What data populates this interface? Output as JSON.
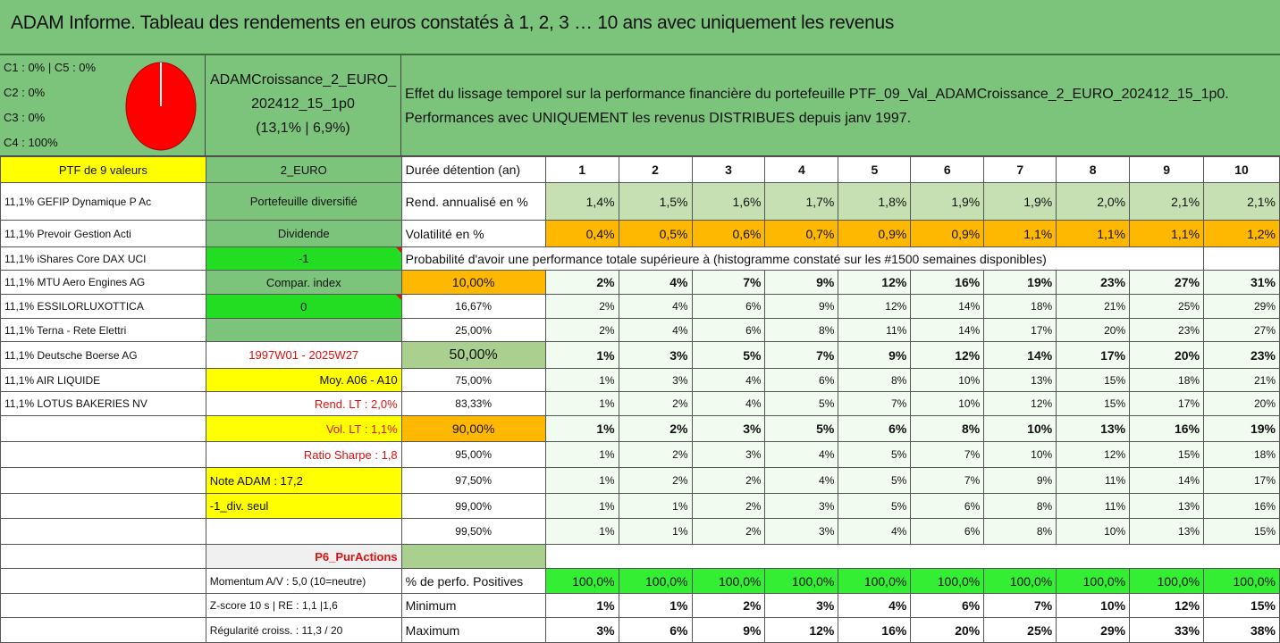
{
  "title": "ADAM Informe. Tableau des rendements en euros constatés à 1, 2, 3 … 10 ans avec uniquement les revenus",
  "pie": {
    "lines": [
      "C1 : 0% | C5 : 0%",
      "C2 : 0%",
      "C3 : 0%",
      "C4 : 100%"
    ],
    "color": "#ff0000"
  },
  "portfolio": {
    "name_line1": "ADAMCroissance_2_EURO_",
    "name_line2": "202412_15_1p0",
    "stats": "(13,1% | 6,9%)"
  },
  "description": {
    "line1": "Effet du lissage temporel sur la performance financière du portefeuille PTF_09_Val_ADAMCroissance_2_EURO_202412_15_1p0.",
    "line2": "Performances avec UNIQUEMENT les revenus DISTRIBUES depuis janv 1997."
  },
  "header_row": {
    "ptf_label": "PTF de 9 valeurs",
    "currency": "2_EURO",
    "duration_label": "Durée détention (an)",
    "years": [
      "1",
      "2",
      "3",
      "4",
      "5",
      "6",
      "7",
      "8",
      "9",
      "10"
    ]
  },
  "holdings": [
    "11,1% GEFIP Dynamique P Ac",
    "11,1% Prevoir Gestion Acti",
    "11,1% iShares Core DAX UCI",
    "11,1% MTU Aero Engines AG",
    "11,1% ESSILORLUXOTTICA",
    "11,1% Terna - Rete Elettri",
    "11,1% Deutsche Boerse AG",
    "11,1% AIR LIQUIDE",
    "11,1% LOTUS BAKERIES NV"
  ],
  "side_info": {
    "type": "Portefeuille diversifié",
    "dividend": "Dividende",
    "dividend_value": "-1",
    "compar_index": "Compar. index",
    "compar_value": "0",
    "period": "1997W01 - 2025W27",
    "moy": "Moy. A06 - A10",
    "rend_lt": "Rend. LT : 2,0%",
    "vol_lt": "Vol. LT : 1,1%",
    "sharpe": "Ratio Sharpe : 1,8",
    "note": "Note ADAM : 17,2",
    "div_seul": "-1_div. seul",
    "profile": "P6_PurActions",
    "momentum": "Momentum A/V : 5,0 (10=neutre)",
    "zscore": "Z-score 10 s | RE : 1,1 |1,6",
    "regularite": "Régularité croiss. : 11,3 / 20"
  },
  "rend": {
    "label": "Rend. annualisé en %",
    "values": [
      "1,4%",
      "1,5%",
      "1,6%",
      "1,7%",
      "1,8%",
      "1,9%",
      "1,9%",
      "2,0%",
      "2,1%",
      "2,1%"
    ]
  },
  "vol": {
    "label": "Volatilité en %",
    "values": [
      "0,4%",
      "0,5%",
      "0,6%",
      "0,7%",
      "0,9%",
      "0,9%",
      "1,1%",
      "1,1%",
      "1,1%",
      "1,2%"
    ]
  },
  "prob_title": "Probabilité d'avoir une performance totale supérieure à (histogramme constaté sur les #1500 semaines disponibles)",
  "prob_rows": [
    {
      "p": "10,00%",
      "values": [
        "2%",
        "4%",
        "7%",
        "9%",
        "12%",
        "16%",
        "19%",
        "23%",
        "27%",
        "31%"
      ]
    },
    {
      "p": "16,67%",
      "values": [
        "2%",
        "4%",
        "6%",
        "9%",
        "12%",
        "14%",
        "18%",
        "21%",
        "25%",
        "29%"
      ]
    },
    {
      "p": "25,00%",
      "values": [
        "2%",
        "4%",
        "6%",
        "8%",
        "11%",
        "14%",
        "17%",
        "20%",
        "23%",
        "27%"
      ]
    },
    {
      "p": "50,00%",
      "values": [
        "1%",
        "3%",
        "5%",
        "7%",
        "9%",
        "12%",
        "14%",
        "17%",
        "20%",
        "23%"
      ]
    },
    {
      "p": "75,00%",
      "values": [
        "1%",
        "3%",
        "4%",
        "6%",
        "8%",
        "10%",
        "13%",
        "15%",
        "18%",
        "21%"
      ]
    },
    {
      "p": "83,33%",
      "values": [
        "1%",
        "2%",
        "4%",
        "5%",
        "7%",
        "10%",
        "12%",
        "15%",
        "17%",
        "20%"
      ]
    },
    {
      "p": "90,00%",
      "values": [
        "1%",
        "2%",
        "3%",
        "5%",
        "6%",
        "8%",
        "10%",
        "13%",
        "16%",
        "19%"
      ]
    },
    {
      "p": "95,00%",
      "values": [
        "1%",
        "2%",
        "3%",
        "4%",
        "5%",
        "7%",
        "10%",
        "12%",
        "15%",
        "18%"
      ]
    },
    {
      "p": "97,50%",
      "values": [
        "1%",
        "2%",
        "2%",
        "4%",
        "5%",
        "7%",
        "9%",
        "11%",
        "14%",
        "17%"
      ]
    },
    {
      "p": "99,00%",
      "values": [
        "1%",
        "1%",
        "2%",
        "3%",
        "5%",
        "6%",
        "8%",
        "11%",
        "13%",
        "16%"
      ]
    },
    {
      "p": "99,50%",
      "values": [
        "1%",
        "1%",
        "2%",
        "3%",
        "4%",
        "6%",
        "8%",
        "10%",
        "13%",
        "15%"
      ]
    }
  ],
  "positives": {
    "label": "% de perfo. Positives",
    "values": [
      "100,0%",
      "100,0%",
      "100,0%",
      "100,0%",
      "100,0%",
      "100,0%",
      "100,0%",
      "100,0%",
      "100,0%",
      "100,0%"
    ]
  },
  "minimum": {
    "label": "Minimum",
    "values": [
      "1%",
      "1%",
      "2%",
      "3%",
      "4%",
      "6%",
      "7%",
      "10%",
      "12%",
      "15%"
    ]
  },
  "maximum": {
    "label": "Maximum",
    "values": [
      "3%",
      "6%",
      "9%",
      "12%",
      "16%",
      "20%",
      "25%",
      "29%",
      "33%",
      "38%"
    ]
  }
}
